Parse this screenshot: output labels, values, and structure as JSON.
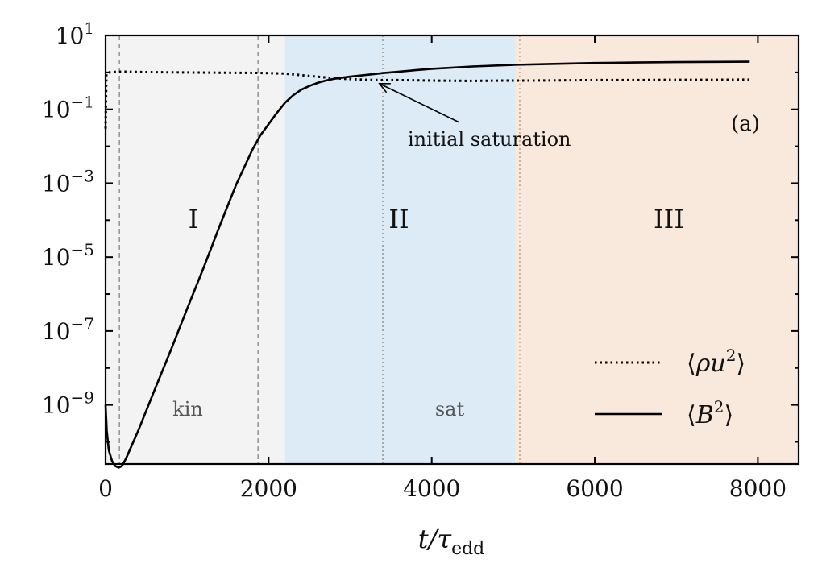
{
  "chart_data": {
    "type": "line",
    "title": "",
    "xlabel": "t/τ_edd",
    "ylabel": "",
    "xlim": [
      0,
      8500
    ],
    "ylim_log10": [
      -10.6,
      1
    ],
    "yscale": "log",
    "grid": false,
    "legend_placement": "bottom-right",
    "panel_label": "(a)",
    "x_ticks": [
      0,
      2000,
      4000,
      6000,
      8000
    ],
    "x_tick_labels": [
      "0",
      "2000",
      "4000",
      "6000",
      "8000"
    ],
    "y_ticks": [
      {
        "exp": 1,
        "base": "10",
        "sup": "1"
      },
      {
        "exp": -1,
        "base": "10",
        "sup": "−1"
      },
      {
        "exp": -3,
        "base": "10",
        "sup": "−3"
      },
      {
        "exp": -5,
        "base": "10",
        "sup": "−5"
      },
      {
        "exp": -7,
        "base": "10",
        "sup": "−7"
      },
      {
        "exp": -9,
        "base": "10",
        "sup": "−9"
      }
    ],
    "regions": [
      {
        "label": "I",
        "phase_label": "kin",
        "x_start": 0,
        "x_end": 2200,
        "color": "#f3f3f3"
      },
      {
        "label": "II",
        "phase_label": "sat",
        "x_start": 2200,
        "x_end": 5030,
        "color": "#ddebf6"
      },
      {
        "label": "III",
        "phase_label": "",
        "x_start": 5030,
        "x_end": 8500,
        "color": "#f9e8dc"
      }
    ],
    "vlines": [
      {
        "x": 170,
        "style": "dashed",
        "color": "#999999"
      },
      {
        "x": 1870,
        "style": "dashed",
        "color": "#999999"
      },
      {
        "x": 3400,
        "style": "dotted",
        "color": "#999999"
      },
      {
        "x": 5080,
        "style": "dotted",
        "color": "#c8a48a"
      }
    ],
    "series": [
      {
        "name": "⟨ρu²⟩",
        "style": "dotted",
        "x": [
          0,
          10,
          30,
          80,
          200,
          500,
          1000,
          1500,
          1900,
          2200,
          2500,
          2800,
          3000,
          3200,
          3400,
          3600,
          4000,
          4500,
          4900,
          5200,
          5600,
          6000,
          6500,
          7000,
          7500,
          7900
        ],
        "y": [
          0.03,
          0.9,
          1.0,
          1.02,
          1.05,
          1.02,
          1.0,
          0.98,
          0.97,
          0.93,
          0.8,
          0.7,
          0.66,
          0.63,
          0.62,
          0.62,
          0.6,
          0.59,
          0.6,
          0.6,
          0.61,
          0.62,
          0.62,
          0.63,
          0.63,
          0.64
        ]
      },
      {
        "name": "⟨B²⟩",
        "style": "solid",
        "x": [
          0,
          15,
          40,
          80,
          120,
          160,
          200,
          250,
          400,
          600,
          800,
          1000,
          1200,
          1400,
          1600,
          1800,
          1900,
          2000,
          2100,
          2200,
          2300,
          2400,
          2500,
          2600,
          2700,
          2800,
          2900,
          3000,
          3200,
          3400,
          3600,
          3800,
          4000,
          4500,
          5000,
          5500,
          6000,
          6500,
          7000,
          7500,
          7900
        ],
        "y": [
          1e-09,
          2e-10,
          6e-11,
          3e-11,
          2.2e-11,
          2e-11,
          2.2e-11,
          3.5e-11,
          2e-10,
          2.5e-09,
          3e-08,
          4e-07,
          5e-06,
          7e-05,
          0.0009,
          0.008,
          0.02,
          0.04,
          0.08,
          0.15,
          0.24,
          0.34,
          0.43,
          0.52,
          0.6,
          0.67,
          0.72,
          0.77,
          0.86,
          0.96,
          1.05,
          1.15,
          1.25,
          1.45,
          1.6,
          1.7,
          1.8,
          1.85,
          1.9,
          1.93,
          1.95
        ]
      }
    ],
    "annotation": {
      "text": "initial saturation",
      "arrow_to": {
        "x": 3300,
        "y": 0.55
      },
      "text_at": {
        "x": 3720,
        "y": 0.011
      }
    },
    "axis_title_main": "t/τ",
    "axis_title_sub": "edd",
    "legend_entries": [
      {
        "style": "dotted",
        "prefix": "⟨",
        "body": "ρu",
        "sup": "2",
        "suffix": "⟩"
      },
      {
        "style": "solid",
        "prefix": "⟨",
        "body": "B",
        "sup": "2",
        "suffix": "⟩"
      }
    ]
  }
}
